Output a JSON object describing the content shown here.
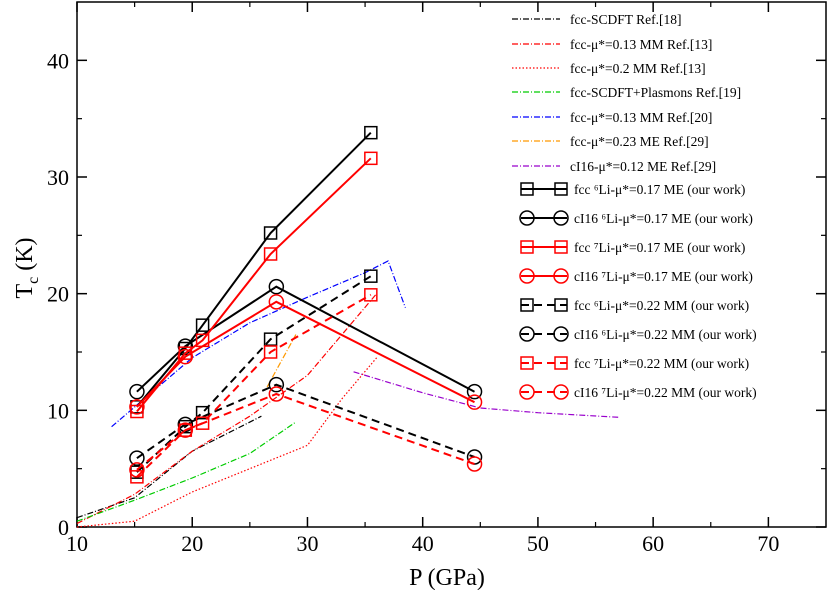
{
  "chart_data": {
    "type": "line",
    "title": "",
    "xlabel": "P (GPa)",
    "ylabel_main": "T",
    "ylabel_sub": "c",
    "ylabel_unit": " (K)",
    "xlim": [
      10,
      75
    ],
    "ylim": [
      0,
      45
    ],
    "xticks": [
      10,
      20,
      30,
      40,
      50,
      60,
      70
    ],
    "yticks": [
      0,
      10,
      20,
      30,
      40
    ],
    "xtick_labels": [
      "10",
      "20",
      "30",
      "40",
      "50",
      "60",
      "70"
    ],
    "ytick_labels": [
      "0",
      "10",
      "20",
      "30",
      "40"
    ],
    "grid": false,
    "legend_position": "top-right",
    "series": [
      {
        "id": "fcc-scdft-18",
        "legend_label": "fcc-SCDFT Ref.[18]",
        "color": "#000000",
        "dash": "6,2,1,2",
        "marker": "none",
        "x": [
          10,
          15,
          20,
          26
        ],
        "y": [
          0.8,
          2.5,
          6.5,
          9.5
        ]
      },
      {
        "id": "fcc-mm013-13",
        "legend_label": "fcc-μ*=0.13 MM Ref.[13]",
        "color": "#ff0000",
        "dash": "6,2,1,2",
        "marker": "none",
        "x": [
          10,
          15,
          20,
          25,
          30,
          36
        ],
        "y": [
          0.3,
          2.8,
          6.5,
          9.5,
          13.0,
          20.0
        ]
      },
      {
        "id": "fcc-mm02-13",
        "legend_label": "fcc-μ*=0.2 MM Ref.[13]",
        "color": "#ff0000",
        "dash": "1.5,2",
        "marker": "none",
        "x": [
          10,
          15,
          20,
          25,
          30,
          33,
          36
        ],
        "y": [
          0.0,
          0.5,
          3.0,
          5.0,
          7.0,
          11.0,
          14.5
        ]
      },
      {
        "id": "fcc-scdft-plasmons-19",
        "legend_label": "fcc-SCDFT+Plasmons Ref.[19]",
        "color": "#00cc00",
        "dash": "6,2,1,2",
        "marker": "none",
        "x": [
          10,
          15,
          20,
          25,
          29
        ],
        "y": [
          0.5,
          2.3,
          4.2,
          6.3,
          9.0
        ]
      },
      {
        "id": "fcc-mm013-20",
        "legend_label": "fcc-μ*=0.13 MM Ref.[20]",
        "color": "#0000ff",
        "dash": "6,2,1,2",
        "marker": "none",
        "x": [
          13,
          20,
          25,
          30,
          35,
          37,
          38.5
        ],
        "y": [
          8.6,
          14.5,
          17.5,
          19.7,
          21.8,
          22.8,
          18.8
        ]
      },
      {
        "id": "fcc-me023-29",
        "legend_label": "fcc-μ*=0.23 ME Ref.[29]",
        "color": "#ff9900",
        "dash": "6,2,1,2",
        "marker": "none",
        "x": [
          26.5,
          29
        ],
        "y": [
          12.0,
          16.5
        ]
      },
      {
        "id": "ci16-me012-29",
        "legend_label": "cI16-μ*=0.12 ME Ref.[29]",
        "color": "#9900cc",
        "dash": "6,2,1,2",
        "marker": "none",
        "x": [
          34,
          40,
          45,
          50,
          57
        ],
        "y": [
          13.3,
          11.5,
          10.2,
          9.8,
          9.4
        ]
      },
      {
        "id": "fcc-li6-017-me",
        "legend_label": "fcc ⁶Li-μ*=0.17 ME (our work)",
        "color": "#000000",
        "dash": "",
        "marker": "square",
        "x": [
          15.2,
          19.4,
          20.9,
          26.8,
          35.5
        ],
        "y": [
          10.3,
          15.3,
          17.3,
          25.2,
          33.8
        ]
      },
      {
        "id": "ci16-li6-017-me",
        "legend_label": "cI16 ⁶Li-μ*=0.17 ME (our work)",
        "color": "#000000",
        "dash": "",
        "marker": "circle",
        "x": [
          15.2,
          19.4,
          27.3,
          44.5
        ],
        "y": [
          11.6,
          15.5,
          20.6,
          11.6
        ]
      },
      {
        "id": "fcc-li7-017-me",
        "legend_label": "fcc ⁷Li-μ*=0.17 ME (our work)",
        "color": "#ff0000",
        "dash": "",
        "marker": "square",
        "x": [
          15.2,
          19.4,
          20.9,
          26.8,
          35.5
        ],
        "y": [
          9.9,
          14.9,
          16.0,
          23.4,
          31.6
        ]
      },
      {
        "id": "ci16-li7-017-me",
        "legend_label": "cI16 ⁷Li-μ*=0.17 ME (our work)",
        "color": "#ff0000",
        "dash": "",
        "marker": "circle",
        "x": [
          15.2,
          19.4,
          27.3,
          44.5
        ],
        "y": [
          10.3,
          14.6,
          19.3,
          10.7
        ]
      },
      {
        "id": "fcc-li6-022-mm",
        "legend_label": "fcc ⁶Li-μ*=0.22 MM (our work)",
        "color": "#000000",
        "dash": "8,5",
        "marker": "square",
        "x": [
          15.2,
          19.4,
          20.9,
          26.8,
          35.5
        ],
        "y": [
          4.7,
          8.6,
          9.8,
          16.1,
          21.5
        ]
      },
      {
        "id": "ci16-li6-022-mm",
        "legend_label": "cI16 ⁶Li-μ*=0.22 MM (our work)",
        "color": "#000000",
        "dash": "8,5",
        "marker": "circle",
        "x": [
          15.2,
          19.4,
          27.3,
          44.5
        ],
        "y": [
          5.9,
          8.8,
          12.2,
          6.0
        ]
      },
      {
        "id": "fcc-li7-022-mm",
        "legend_label": "fcc ⁷Li-μ*=0.22 MM (our work)",
        "color": "#ff0000",
        "dash": "8,5",
        "marker": "square",
        "x": [
          15.2,
          19.4,
          20.9,
          26.8,
          35.5
        ],
        "y": [
          4.3,
          8.3,
          8.9,
          15.0,
          19.9
        ]
      },
      {
        "id": "ci16-li7-022-mm",
        "legend_label": "cI16 ⁷Li-μ*=0.22 MM (our work)",
        "color": "#ff0000",
        "dash": "8,5",
        "marker": "circle",
        "x": [
          15.2,
          19.4,
          27.3,
          44.5
        ],
        "y": [
          4.9,
          8.3,
          11.4,
          5.4
        ]
      }
    ]
  }
}
